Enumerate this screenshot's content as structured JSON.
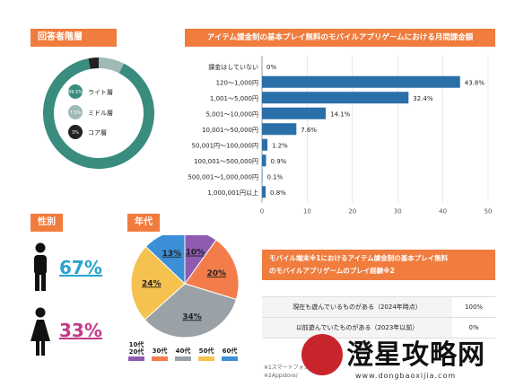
{
  "respondents": {
    "title": "回答者階層"
  },
  "donut": {
    "segments": [
      {
        "label": "ライト層",
        "value": 89.5,
        "value_text": "89.5%",
        "color": "#3a8c7e"
      },
      {
        "label": "ミドル層",
        "value": 7.5,
        "value_text": "7.5%",
        "color": "#9fb9b7"
      },
      {
        "label": "コア層",
        "value": 3,
        "value_text": "3%",
        "color": "#222222"
      }
    ]
  },
  "gender": {
    "title": "性別",
    "male": "67%",
    "female": "33%",
    "male_color": "#2aa3cc",
    "female_color": "#c23a86"
  },
  "age": {
    "title": "年代"
  },
  "experience": {
    "title_line1": "モバイル端末※1におけるアイテム課金制の基本プレイ無料",
    "title_line2": "のモバイルアプリゲームのプレイ経験※2",
    "rows": [
      {
        "label": "現在も遊んでいるものがある（2024年時点）",
        "value": "100%"
      },
      {
        "label": "以前遊んでいたものがある（2023年以前）",
        "value": "0%"
      }
    ],
    "footnote1": "※1スマートフォン",
    "footnote2": "※2Appstore/"
  },
  "watermark": {
    "text": "澄星攻略网",
    "url": "www.dongbaoxijia.com"
  },
  "chart_data": [
    {
      "type": "bar",
      "title": "アイテム課金制の基本プレイ無料のモバイルアプリゲームにおける月間課金額",
      "orientation": "horizontal",
      "categories": [
        "課金はしていない",
        "120～1,000円",
        "1,001～5,000円",
        "5,001～10,000円",
        "10,001～50,000円",
        "50,001円～100,000円",
        "100,001～500,000円",
        "500,001～1,000,000円",
        "1,000,001円以上"
      ],
      "values": [
        0,
        43.8,
        32.4,
        14.1,
        7.6,
        1.2,
        0.9,
        0.1,
        0.8
      ],
      "value_labels": [
        "0%",
        "43.8%",
        "32.4%",
        "14.1%",
        "7.6%",
        "1.2%",
        "0.9%",
        "0.1%",
        "0.8%"
      ],
      "xlim": [
        0,
        50
      ],
      "xticks": [
        "0",
        "10",
        "20",
        "30",
        "40",
        "50"
      ],
      "grid": true,
      "color": "#2a6fa8"
    },
    {
      "type": "pie",
      "title": "年代",
      "categories": [
        "10代\n20代",
        "30代",
        "40代",
        "50代",
        "60代"
      ],
      "values": [
        10,
        20,
        34,
        24,
        13
      ],
      "value_labels": [
        "10%",
        "20%",
        "34%",
        "24%",
        "13%"
      ],
      "colors": [
        "#8e5bb0",
        "#f27d4a",
        "#9aa2a8",
        "#f6c24f",
        "#3c8fd6"
      ]
    }
  ]
}
